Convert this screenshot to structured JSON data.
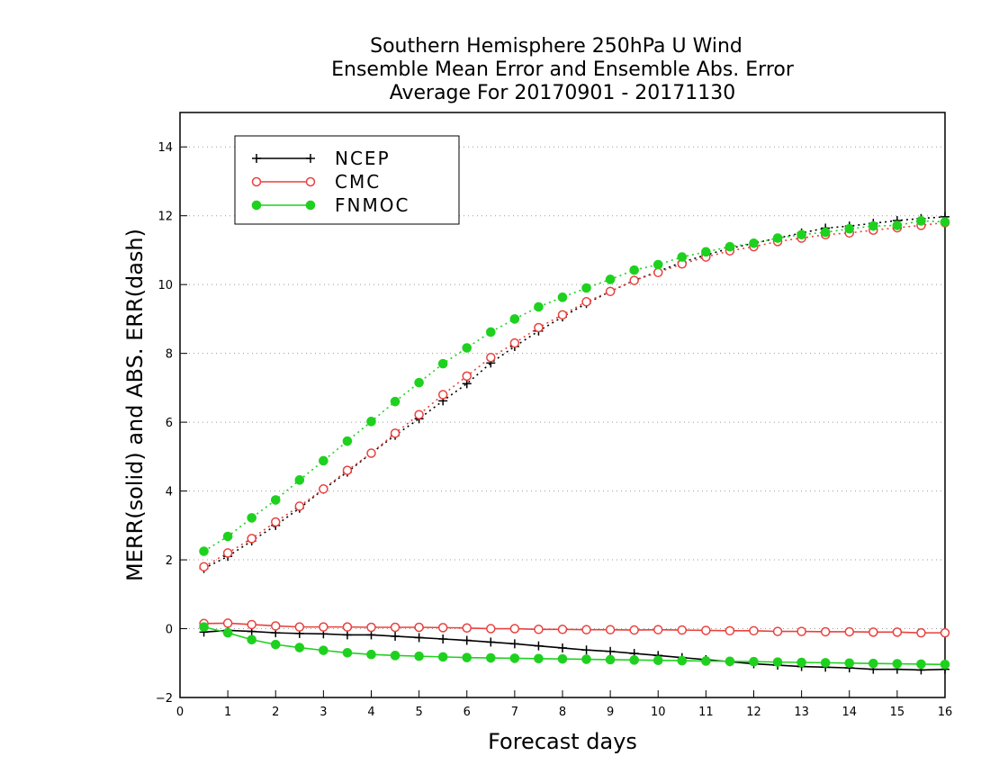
{
  "chart_data": {
    "type": "line",
    "title_lines": [
      "Southern Hemisphere 250hPa U Wind",
      "Ensemble Mean Error and Ensemble Abs. Error",
      "Average For 20170901 - 20171130"
    ],
    "xlabel": "Forecast days",
    "ylabel": "MERR(solid) and ABS. ERR(dash)",
    "xlim": [
      0,
      16
    ],
    "ylim": [
      -2,
      15
    ],
    "xticks": [
      "0",
      "1",
      "2",
      "3",
      "4",
      "5",
      "6",
      "7",
      "8",
      "9",
      "10",
      "11",
      "12",
      "13",
      "14",
      "15",
      "16"
    ],
    "yticks": [
      "−2",
      "0",
      "2",
      "4",
      "6",
      "8",
      "10",
      "12",
      "14"
    ],
    "grid": "horizontal dotted",
    "legend_position": "top-left",
    "x": [
      0.5,
      1,
      1.5,
      2,
      2.5,
      3,
      3.5,
      4,
      4.5,
      5,
      5.5,
      6,
      6.5,
      7,
      7.5,
      8,
      8.5,
      9,
      9.5,
      10,
      10.5,
      11,
      11.5,
      12,
      12.5,
      13,
      13.5,
      14,
      14.5,
      15,
      15.5,
      16
    ],
    "series": [
      {
        "name": "NCEP",
        "color": "#000000",
        "marker": "plus",
        "merr": [
          -0.1,
          -0.05,
          -0.08,
          -0.12,
          -0.14,
          -0.15,
          -0.18,
          -0.18,
          -0.22,
          -0.26,
          -0.3,
          -0.34,
          -0.39,
          -0.44,
          -0.5,
          -0.56,
          -0.62,
          -0.66,
          -0.72,
          -0.78,
          -0.84,
          -0.9,
          -0.96,
          -1.02,
          -1.06,
          -1.1,
          -1.12,
          -1.14,
          -1.18,
          -1.18,
          -1.2,
          -1.18
        ],
        "abs_err": [
          1.75,
          2.1,
          2.55,
          3.0,
          3.5,
          4.05,
          4.55,
          5.1,
          5.62,
          6.1,
          6.62,
          7.12,
          7.72,
          8.2,
          8.65,
          9.06,
          9.45,
          9.8,
          10.12,
          10.38,
          10.65,
          10.86,
          11.05,
          11.2,
          11.35,
          11.5,
          11.64,
          11.7,
          11.78,
          11.86,
          11.92,
          11.97
        ]
      },
      {
        "name": "CMC",
        "color": "#e8413d",
        "marker": "open-circle",
        "merr": [
          0.15,
          0.16,
          0.12,
          0.08,
          0.05,
          0.05,
          0.05,
          0.04,
          0.04,
          0.04,
          0.03,
          0.02,
          0.0,
          0.0,
          -0.02,
          -0.02,
          -0.03,
          -0.03,
          -0.04,
          -0.03,
          -0.04,
          -0.05,
          -0.06,
          -0.06,
          -0.08,
          -0.08,
          -0.09,
          -0.09,
          -0.1,
          -0.1,
          -0.12,
          -0.12
        ],
        "abs_err": [
          1.8,
          2.2,
          2.62,
          3.1,
          3.56,
          4.06,
          4.6,
          5.1,
          5.68,
          6.22,
          6.8,
          7.34,
          7.88,
          8.3,
          8.75,
          9.12,
          9.5,
          9.8,
          10.12,
          10.35,
          10.6,
          10.8,
          10.98,
          11.1,
          11.25,
          11.35,
          11.45,
          11.5,
          11.58,
          11.65,
          11.72,
          11.8
        ]
      },
      {
        "name": "FNMOC",
        "color": "#1fd11f",
        "marker": "filled-circle",
        "merr": [
          0.05,
          -0.12,
          -0.32,
          -0.46,
          -0.55,
          -0.63,
          -0.7,
          -0.75,
          -0.78,
          -0.8,
          -0.82,
          -0.84,
          -0.85,
          -0.86,
          -0.87,
          -0.88,
          -0.89,
          -0.9,
          -0.91,
          -0.92,
          -0.93,
          -0.94,
          -0.95,
          -0.96,
          -0.97,
          -0.98,
          -0.99,
          -1.0,
          -1.01,
          -1.02,
          -1.03,
          -1.04
        ],
        "abs_err": [
          2.25,
          2.68,
          3.22,
          3.74,
          4.32,
          4.88,
          5.45,
          6.02,
          6.6,
          7.15,
          7.7,
          8.16,
          8.62,
          9.0,
          9.35,
          9.63,
          9.9,
          10.15,
          10.42,
          10.58,
          10.8,
          10.95,
          11.1,
          11.2,
          11.35,
          11.45,
          11.52,
          11.62,
          11.7,
          11.72,
          11.85,
          11.82
        ]
      }
    ]
  }
}
